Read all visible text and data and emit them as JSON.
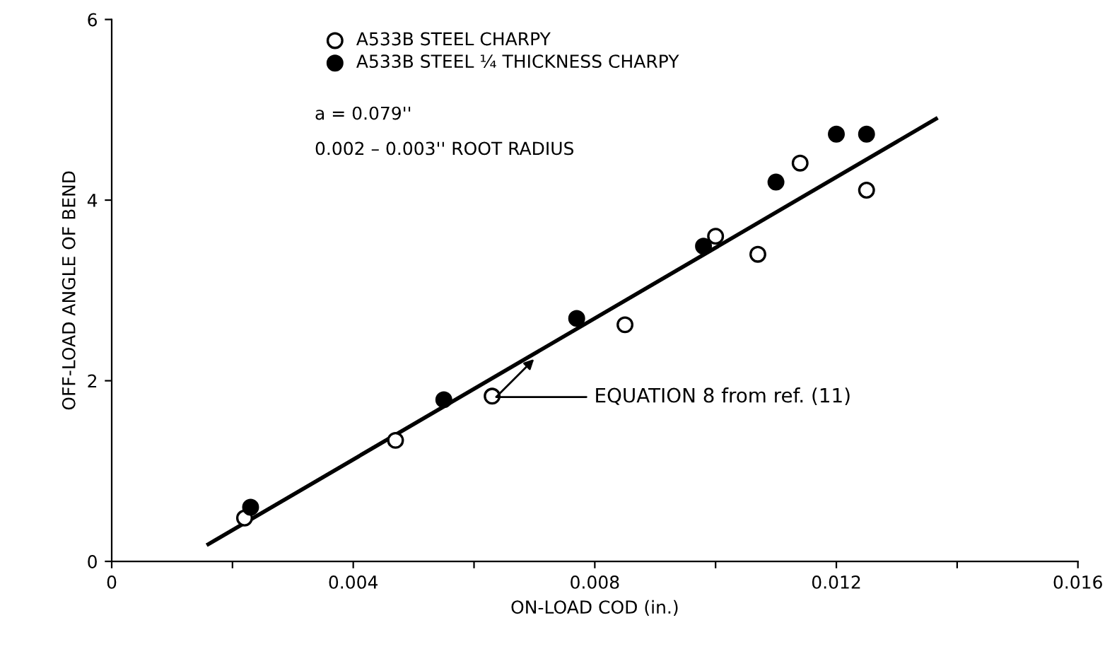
{
  "chart_data": {
    "type": "scatter",
    "xlabel": "ON-LOAD COD (in.)",
    "ylabel": "OFF-LOAD ANGLE OF BEND",
    "xlim": [
      0,
      0.016
    ],
    "ylim": [
      0,
      6
    ],
    "xticks": [
      0,
      {
        "value": 0.002,
        "label": null
      },
      0.004,
      {
        "value": 0.006,
        "label": null
      },
      0.008,
      {
        "value": 0.01,
        "label": null
      },
      0.012,
      {
        "value": 0.014,
        "label": null
      },
      0.016
    ],
    "yticks": [
      0,
      2,
      4,
      6
    ],
    "grid": false,
    "legend": "top left",
    "series": [
      {
        "name": "A533B STEEL CHARPY",
        "color": "#000000",
        "marker": "open circle",
        "x": [
          0.0022,
          0.0047,
          0.0063,
          0.0085,
          0.01,
          0.0107,
          0.0114,
          0.0125
        ],
        "values": [
          0.48,
          1.34,
          1.83,
          2.62,
          3.6,
          3.4,
          4.41,
          4.11
        ]
      },
      {
        "name": "A533B STEEL ¼ THICKNESS CHARPY",
        "color": "#000000",
        "marker": "circle",
        "x": [
          0.0023,
          0.0055,
          0.0077,
          0.0098,
          0.011,
          0.012,
          0.0125
        ],
        "values": [
          0.6,
          1.79,
          2.69,
          3.49,
          4.2,
          4.73,
          4.73
        ]
      },
      {
        "type": "line",
        "color": "#000000",
        "line_style": "solid",
        "marker": "none",
        "x": [
          0.0016,
          0.01365
        ],
        "values": [
          0.19,
          4.9
        ]
      }
    ],
    "annotations": [
      "a = 0.079''",
      "0.002 – 0.003'' ROOT RADIUS",
      {
        "text": "EQUATION 8 from ref. (11)",
        "x": 0.00704,
        "y": 2.27
      }
    ]
  }
}
